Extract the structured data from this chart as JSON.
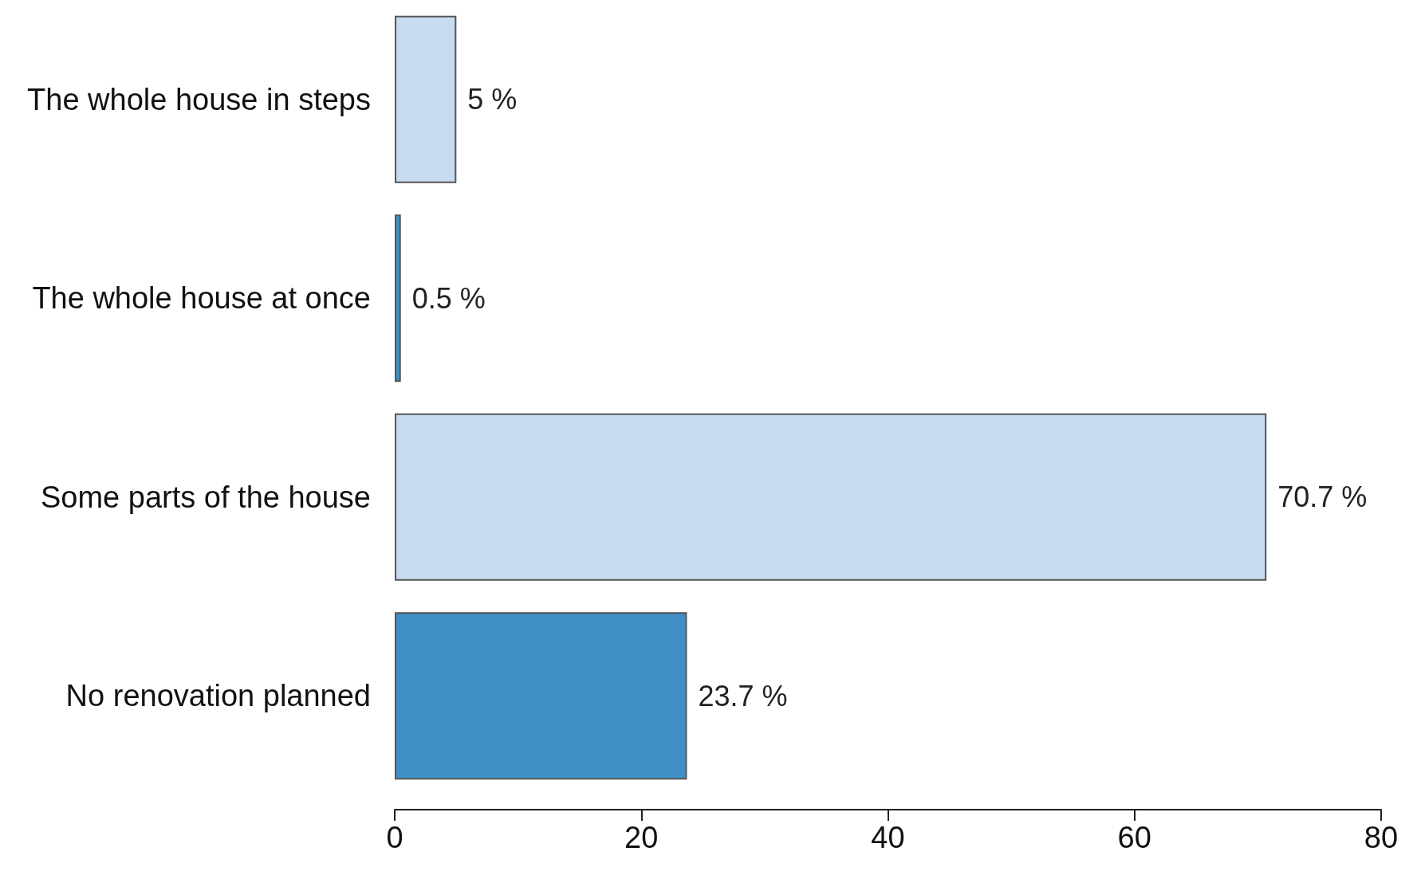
{
  "chart_data": {
    "type": "bar",
    "orientation": "horizontal",
    "categories": [
      "The whole house in steps",
      "The whole house at once",
      "Some parts of the house",
      "No renovation planned"
    ],
    "values": [
      5,
      0.5,
      70.7,
      23.7
    ],
    "colors": [
      "#c6dbef",
      "#4090c5",
      "#c6dbef",
      "#4090c5"
    ],
    "value_labels": [
      "5 %",
      "0.5 %",
      "70.7 %",
      "23.7 %"
    ],
    "xlim": [
      0,
      80
    ],
    "xticks": [
      0,
      20,
      40,
      60,
      80
    ],
    "grid": false
  }
}
